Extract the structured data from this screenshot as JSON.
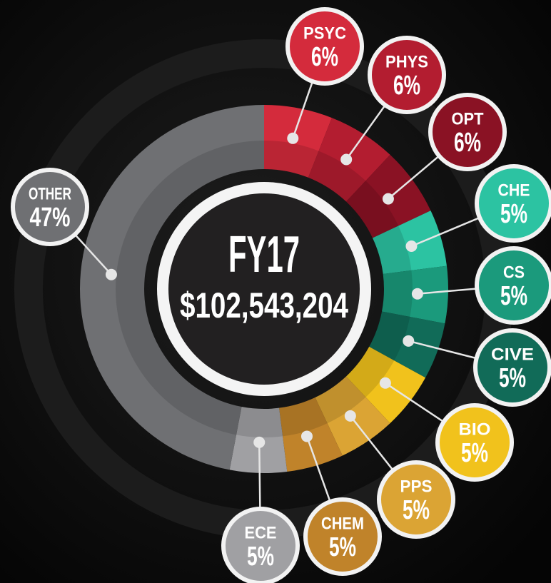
{
  "chart_data": {
    "type": "donut",
    "center_title": "FY17",
    "center_subtitle": "$102,543,204",
    "categories": [
      "PSYC",
      "PHYS",
      "OPT",
      "CHE",
      "CS",
      "CIVE",
      "BIO",
      "PPS",
      "CHEM",
      "ECE",
      "OTHER"
    ],
    "values": [
      6,
      6,
      6,
      5,
      5,
      5,
      5,
      5,
      5,
      5,
      47
    ],
    "value_labels": [
      "6%",
      "6%",
      "6%",
      "5%",
      "5%",
      "5%",
      "5%",
      "5%",
      "5%",
      "5%",
      "47%"
    ],
    "colors": [
      "#d42b3c",
      "#b31d30",
      "#8a1224",
      "#2cc3a2",
      "#1b9a7c",
      "#116b58",
      "#f1c21c",
      "#dba434",
      "#c0832a",
      "#a0a0a3",
      "#6f7073"
    ]
  }
}
